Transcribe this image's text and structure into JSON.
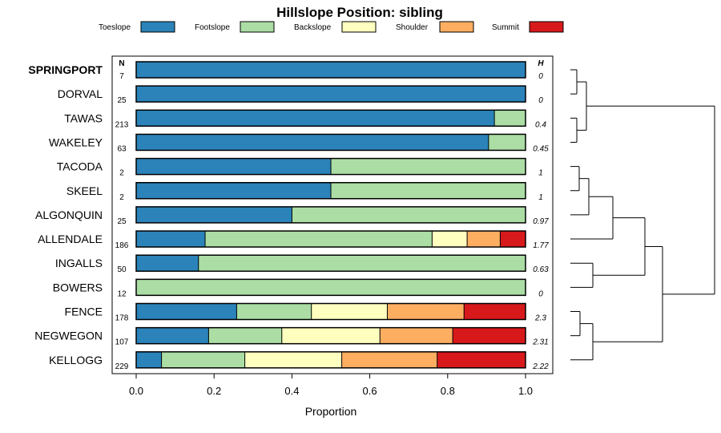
{
  "chart_data": {
    "type": "bar",
    "orientation": "horizontal",
    "stacked": true,
    "title": "Hillslope Position: sibling",
    "xlabel": "Proportion",
    "xlim": [
      0,
      1
    ],
    "x_ticks": [
      "0.0",
      "0.2",
      "0.4",
      "0.6",
      "0.8",
      "1.0"
    ],
    "n_header": "N",
    "h_header": "H",
    "legend_position": "top",
    "series": [
      {
        "name": "Toeslope",
        "color": "#2b83ba"
      },
      {
        "name": "Footslope",
        "color": "#abdda4"
      },
      {
        "name": "Backslope",
        "color": "#ffffbf"
      },
      {
        "name": "Shoulder",
        "color": "#fdae61"
      },
      {
        "name": "Summit",
        "color": "#d7191c"
      }
    ],
    "rows": [
      {
        "label": "SPRINGPORT",
        "bold": true,
        "n": "7",
        "h": "0",
        "values": [
          1.0,
          0,
          0,
          0,
          0
        ]
      },
      {
        "label": "DORVAL",
        "n": "25",
        "h": "0",
        "values": [
          1.0,
          0,
          0,
          0,
          0
        ]
      },
      {
        "label": "TAWAS",
        "n": "213",
        "h": "0.4",
        "values": [
          0.92,
          0.08,
          0,
          0,
          0
        ]
      },
      {
        "label": "WAKELEY",
        "n": "63",
        "h": "0.45",
        "values": [
          0.905,
          0.095,
          0,
          0,
          0
        ]
      },
      {
        "label": "TACODA",
        "n": "2",
        "h": "1",
        "values": [
          0.5,
          0.5,
          0,
          0,
          0
        ]
      },
      {
        "label": "SKEEL",
        "n": "2",
        "h": "1",
        "values": [
          0.5,
          0.5,
          0,
          0,
          0
        ]
      },
      {
        "label": "ALGONQUIN",
        "n": "25",
        "h": "0.97",
        "values": [
          0.4,
          0.6,
          0,
          0,
          0
        ]
      },
      {
        "label": "ALLENDALE",
        "n": "186",
        "h": "1.77",
        "values": [
          0.177,
          0.583,
          0.09,
          0.085,
          0.065
        ]
      },
      {
        "label": "INGALLS",
        "n": "50",
        "h": "0.63",
        "values": [
          0.16,
          0.84,
          0,
          0,
          0
        ]
      },
      {
        "label": "BOWERS",
        "n": "12",
        "h": "0",
        "values": [
          0,
          1.0,
          0,
          0,
          0
        ]
      },
      {
        "label": "FENCE",
        "n": "178",
        "h": "2.3",
        "values": [
          0.258,
          0.192,
          0.195,
          0.197,
          0.158
        ]
      },
      {
        "label": "NEGWEGON",
        "n": "107",
        "h": "2.31",
        "values": [
          0.186,
          0.188,
          0.252,
          0.187,
          0.187
        ]
      },
      {
        "label": "KELLOGG",
        "n": "229",
        "h": "2.22",
        "values": [
          0.065,
          0.214,
          0.249,
          0.245,
          0.227
        ]
      }
    ],
    "dendrogram": true
  }
}
